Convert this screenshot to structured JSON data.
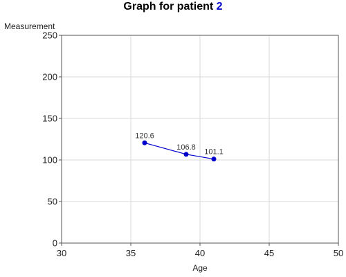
{
  "title": {
    "prefix": "Graph for patient ",
    "patient_id": "2"
  },
  "chart_data": {
    "type": "line",
    "x": [
      36,
      39,
      41
    ],
    "series": [
      {
        "values": [
          120.6,
          106.8,
          101.1
        ],
        "labels": [
          "120.6",
          "106.8",
          "101.1"
        ]
      }
    ],
    "xlabel": "Age",
    "ylabel": "Measurement",
    "xlim": [
      30,
      50
    ],
    "ylim": [
      0,
      250
    ],
    "xticks": [
      30,
      35,
      40,
      45,
      50
    ],
    "yticks": [
      0,
      50,
      100,
      150,
      200,
      250
    ],
    "grid": true,
    "legend": "none",
    "colors": {
      "series": "#0000cc",
      "grid": "#d9d9d9",
      "axis": "#555555"
    }
  }
}
